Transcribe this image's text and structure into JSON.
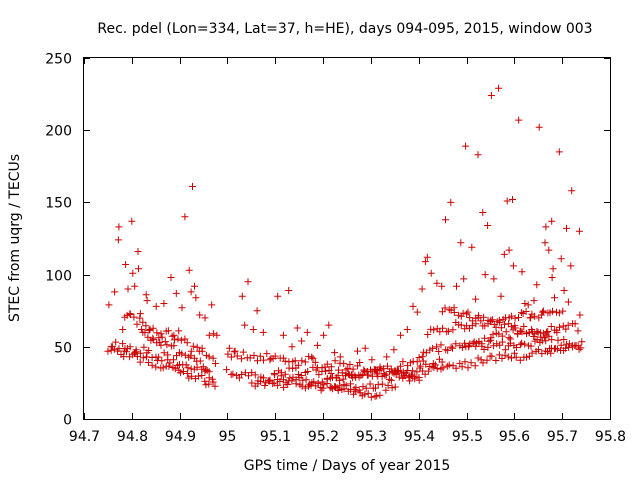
{
  "chart_data": {
    "type": "scatter",
    "title": "Rec. pdel (Lon=334, Lat=37, h=HE), days 094-095, 2015, window 003",
    "xlabel": "GPS time / Days of year 2015",
    "ylabel": "STEC from uqrg / TECUs",
    "xlim": [
      94.7,
      95.8
    ],
    "ylim": [
      0,
      250
    ],
    "xticks": [
      "94.7",
      "94.8",
      "94.9",
      "95",
      "95.1",
      "95.2",
      "95.3",
      "95.4",
      "95.5",
      "95.6",
      "95.7",
      "95.8"
    ],
    "yticks": [
      "0",
      "50",
      "100",
      "150",
      "200",
      "250"
    ],
    "grid": false,
    "marker": "plus",
    "color": "#cc0000",
    "points": [
      [
        94.752,
        79
      ],
      [
        94.757,
        50
      ],
      [
        94.764,
        88
      ],
      [
        94.772,
        124
      ],
      [
        94.773,
        133
      ],
      [
        94.781,
        62
      ],
      [
        94.784,
        47
      ],
      [
        94.787,
        107
      ],
      [
        94.792,
        90
      ],
      [
        94.796,
        73
      ],
      [
        94.8,
        137
      ],
      [
        94.802,
        101
      ],
      [
        94.806,
        92
      ],
      [
        94.809,
        48
      ],
      [
        94.813,
        116
      ],
      [
        94.814,
        104
      ],
      [
        94.818,
        73
      ],
      [
        94.823,
        60
      ],
      [
        94.83,
        86
      ],
      [
        94.832,
        82
      ],
      [
        94.838,
        62
      ],
      [
        94.845,
        55
      ],
      [
        94.851,
        78
      ],
      [
        94.861,
        59
      ],
      [
        94.867,
        80
      ],
      [
        94.875,
        41
      ],
      [
        94.882,
        98
      ],
      [
        94.888,
        58
      ],
      [
        94.893,
        87
      ],
      [
        94.898,
        61
      ],
      [
        94.905,
        77
      ],
      [
        94.911,
        140
      ],
      [
        94.92,
        103
      ],
      [
        94.924,
        88
      ],
      [
        94.927,
        161
      ],
      [
        94.931,
        92
      ],
      [
        94.934,
        84
      ],
      [
        94.942,
        72
      ],
      [
        94.947,
        49
      ],
      [
        94.953,
        70
      ],
      [
        94.962,
        58
      ],
      [
        94.967,
        79
      ],
      [
        94.971,
        59
      ],
      [
        94.978,
        58
      ],
      [
        95.004,
        49
      ],
      [
        95.016,
        47
      ],
      [
        95.031,
        85
      ],
      [
        95.036,
        65
      ],
      [
        95.043,
        95
      ],
      [
        95.054,
        62
      ],
      [
        95.062,
        75
      ],
      [
        95.075,
        60
      ],
      [
        95.091,
        42
      ],
      [
        95.105,
        85
      ],
      [
        95.117,
        58
      ],
      [
        95.128,
        89
      ],
      [
        95.135,
        50
      ],
      [
        95.146,
        63
      ],
      [
        95.155,
        54
      ],
      [
        95.167,
        60
      ],
      [
        95.179,
        42
      ],
      [
        95.188,
        51
      ],
      [
        95.201,
        58
      ],
      [
        95.212,
        65
      ],
      [
        95.224,
        46
      ],
      [
        95.236,
        43
      ],
      [
        95.248,
        34
      ],
      [
        95.26,
        31
      ],
      [
        95.272,
        47
      ],
      [
        95.288,
        49
      ],
      [
        95.302,
        41
      ],
      [
        95.319,
        36
      ],
      [
        95.333,
        43
      ],
      [
        95.348,
        48
      ],
      [
        95.362,
        58
      ],
      [
        95.376,
        62
      ],
      [
        95.388,
        78
      ],
      [
        95.397,
        74
      ],
      [
        95.407,
        90
      ],
      [
        95.414,
        109
      ],
      [
        95.418,
        112
      ],
      [
        95.426,
        101
      ],
      [
        95.438,
        94
      ],
      [
        95.448,
        92
      ],
      [
        95.456,
        138
      ],
      [
        95.467,
        150
      ],
      [
        95.474,
        77
      ],
      [
        95.479,
        92
      ],
      [
        95.488,
        122
      ],
      [
        95.494,
        97
      ],
      [
        95.498,
        189
      ],
      [
        95.503,
        74
      ],
      [
        95.511,
        119
      ],
      [
        95.519,
        83
      ],
      [
        95.524,
        183
      ],
      [
        95.534,
        143
      ],
      [
        95.539,
        100
      ],
      [
        95.544,
        134
      ],
      [
        95.552,
        224
      ],
      [
        95.557,
        97
      ],
      [
        95.567,
        229
      ],
      [
        95.572,
        85
      ],
      [
        95.579,
        114
      ],
      [
        95.585,
        151
      ],
      [
        95.589,
        117
      ],
      [
        95.596,
        152
      ],
      [
        95.598,
        106
      ],
      [
        95.602,
        63
      ],
      [
        95.609,
        207
      ],
      [
        95.616,
        102
      ],
      [
        95.622,
        80
      ],
      [
        95.629,
        79
      ],
      [
        95.634,
        70
      ],
      [
        95.641,
        82
      ],
      [
        95.647,
        93
      ],
      [
        95.652,
        202
      ],
      [
        95.659,
        74
      ],
      [
        95.664,
        122
      ],
      [
        95.666,
        133
      ],
      [
        95.672,
        117
      ],
      [
        95.678,
        137
      ],
      [
        95.679,
        98
      ],
      [
        95.681,
        104
      ],
      [
        95.684,
        84
      ],
      [
        95.689,
        60
      ],
      [
        95.694,
        185
      ],
      [
        95.698,
        111
      ],
      [
        95.704,
        89
      ],
      [
        95.709,
        132
      ],
      [
        95.713,
        81
      ],
      [
        95.718,
        106
      ],
      [
        95.72,
        158
      ],
      [
        95.727,
        66
      ],
      [
        95.733,
        61
      ],
      [
        95.736,
        130
      ],
      [
        95.737,
        72
      ]
    ],
    "tracks": [
      {
        "x0": 94.752,
        "x1": 94.975,
        "y0": 48,
        "y1": 24,
        "n": 38
      },
      {
        "x0": 94.76,
        "x1": 94.97,
        "y0": 52,
        "y1": 30,
        "n": 34
      },
      {
        "x0": 94.785,
        "x1": 94.975,
        "y0": 72,
        "y1": 40,
        "n": 30
      },
      {
        "x0": 94.82,
        "x1": 94.96,
        "y0": 60,
        "y1": 35,
        "n": 24
      },
      {
        "x0": 95.0,
        "x1": 95.32,
        "y0": 32,
        "y1": 16,
        "n": 52
      },
      {
        "x0": 95.0,
        "x1": 95.4,
        "y0": 45,
        "y1": 30,
        "n": 60
      },
      {
        "x0": 95.05,
        "x1": 95.35,
        "y0": 24,
        "y1": 22,
        "n": 46
      },
      {
        "x0": 95.1,
        "x1": 95.4,
        "y0": 34,
        "y1": 28,
        "n": 44
      },
      {
        "x0": 95.2,
        "x1": 95.45,
        "y0": 26,
        "y1": 40,
        "n": 38
      },
      {
        "x0": 95.35,
        "x1": 95.74,
        "y0": 30,
        "y1": 50,
        "n": 62
      },
      {
        "x0": 95.4,
        "x1": 95.72,
        "y0": 45,
        "y1": 65,
        "n": 54
      },
      {
        "x0": 95.42,
        "x1": 95.7,
        "y0": 60,
        "y1": 75,
        "n": 46
      },
      {
        "x0": 95.45,
        "x1": 95.68,
        "y0": 75,
        "y1": 55,
        "n": 38
      },
      {
        "x0": 95.5,
        "x1": 95.74,
        "y0": 50,
        "y1": 52,
        "n": 40
      }
    ]
  }
}
